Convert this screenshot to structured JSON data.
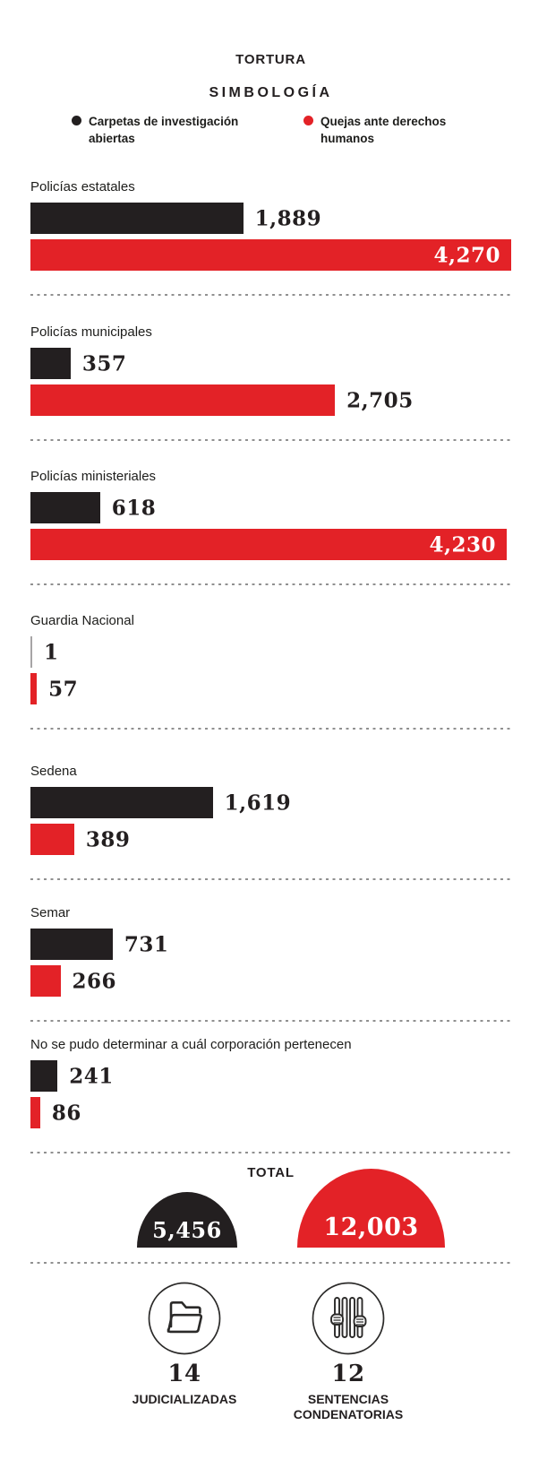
{
  "title": "TORTURA",
  "legend": {
    "heading": "SIMBOLOGÍA",
    "items": [
      {
        "label": "Carpetas de investigación abiertas",
        "color": "#231f20"
      },
      {
        "label": "Quejas ante derechos humanos",
        "color": "#e32227"
      }
    ]
  },
  "chart_data": {
    "type": "bar",
    "orientation": "horizontal",
    "xmax": 4270,
    "grid": false,
    "categories": [
      "Policías estatales",
      "Policías municipales",
      "Policías ministeriales",
      "Guardia Nacional",
      "Sedena",
      "Semar",
      "No se pudo determinar a cuál corporación pertenecen"
    ],
    "series": [
      {
        "name": "Carpetas de investigación abiertas",
        "color": "#231f20",
        "values": [
          1889,
          357,
          618,
          1,
          1619,
          731,
          241
        ],
        "value_labels": [
          "1,889",
          "357",
          "618",
          "1",
          "1,619",
          "731",
          "241"
        ]
      },
      {
        "name": "Quejas ante derechos humanos",
        "color": "#e32227",
        "values": [
          4270,
          2705,
          4230,
          57,
          389,
          266,
          86
        ],
        "value_labels": [
          "4,270",
          "2,705",
          "4,230",
          "57",
          "389",
          "266",
          "86"
        ]
      }
    ]
  },
  "total": {
    "heading": "TOTAL",
    "carpetas": {
      "value": 5456,
      "label": "5,456"
    },
    "quejas": {
      "value": 12003,
      "label": "12,003"
    }
  },
  "footer": {
    "items": [
      {
        "icon": "folder-icon",
        "number": "14",
        "caption": "JUDICIALIZADAS"
      },
      {
        "icon": "jail-bars-icon",
        "number": "12",
        "caption": "SENTENCIAS CONDENATORIAS"
      }
    ]
  },
  "colors": {
    "carpetas_black": "#231f20",
    "quejas_red": "#e32227",
    "dash_gray": "#909090",
    "background": "#ffffff"
  }
}
